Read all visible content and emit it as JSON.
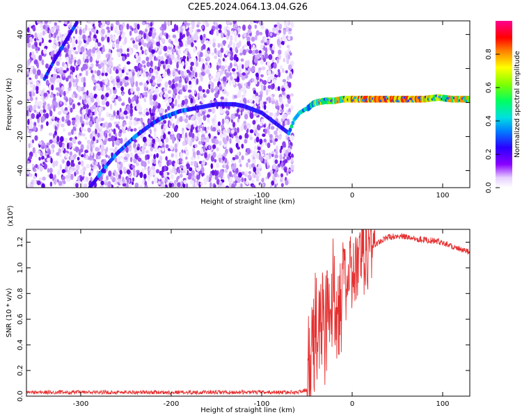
{
  "title": "C2E5.2024.064.13.04.G26",
  "colors": {
    "snr_line": "#e53030",
    "frame": "#000000"
  },
  "chart_data": [
    {
      "type": "heatmap",
      "xlabel": "Height of straight line (km)",
      "ylabel": "Frequency (Hz)",
      "xlim": [
        -360,
        130
      ],
      "ylim": [
        -50,
        48
      ],
      "x_ticks": [
        -300,
        -200,
        -100,
        0,
        100
      ],
      "y_ticks": [
        -40,
        -20,
        0,
        20,
        40
      ],
      "colorbar": {
        "label": "Normalized spectral amplitude",
        "range": [
          0,
          1
        ],
        "ticks": [
          "0.0",
          "0.2",
          "0.4",
          "0.6",
          "0.8"
        ],
        "colormap": "rainbow (white-violet-blue-cyan-green-yellow-red-magenta)"
      },
      "noise_region_x": [
        -360,
        -66
      ],
      "tracks": [
        {
          "name": "steep",
          "points": [
            [
              -340,
              14
            ],
            [
              -330,
              24
            ],
            [
              -320,
              33
            ],
            [
              -310,
              42
            ],
            [
              -303,
              48
            ]
          ]
        },
        {
          "name": "main",
          "points": [
            [
              -290,
              -50
            ],
            [
              -280,
              -43
            ],
            [
              -270,
              -36
            ],
            [
              -260,
              -30
            ],
            [
              -250,
              -25
            ],
            [
              -240,
              -20
            ],
            [
              -230,
              -16
            ],
            [
              -220,
              -12
            ],
            [
              -210,
              -9
            ],
            [
              -200,
              -7
            ],
            [
              -190,
              -5
            ],
            [
              -180,
              -4
            ],
            [
              -170,
              -3
            ],
            [
              -160,
              -2
            ],
            [
              -150,
              -1
            ],
            [
              -140,
              -1
            ],
            [
              -130,
              -1
            ],
            [
              -120,
              -2
            ],
            [
              -110,
              -4
            ],
            [
              -100,
              -6
            ],
            [
              -90,
              -10
            ],
            [
              -80,
              -14
            ],
            [
              -70,
              -18
            ],
            [
              -64,
              -10
            ],
            [
              -58,
              -6
            ],
            [
              -52,
              -4
            ],
            [
              -48,
              -3
            ],
            [
              -44,
              -1
            ],
            [
              -40,
              0
            ],
            [
              -30,
              1
            ],
            [
              -20,
              1
            ],
            [
              -10,
              2
            ],
            [
              0,
              2
            ],
            [
              20,
              2
            ],
            [
              40,
              2
            ],
            [
              60,
              2
            ],
            [
              80,
              2
            ],
            [
              95,
              3
            ],
            [
              110,
              2
            ],
            [
              130,
              2
            ]
          ]
        }
      ]
    },
    {
      "type": "line",
      "xlabel": "Height of straight line (km)",
      "ylabel": "SNR (10 * v/v)",
      "ylabel_scale": "(x10⁴)",
      "xlim": [
        -360,
        130
      ],
      "ylim": [
        0,
        1.3
      ],
      "x_ticks": [
        -300,
        -200,
        -100,
        0,
        100
      ],
      "y_ticks": [
        "0.0",
        "0.2",
        "0.4",
        "0.6",
        "0.8",
        "1.0",
        "1.2"
      ],
      "series": [
        {
          "points": [
            [
              -360,
              0.03
            ],
            [
              -300,
              0.03
            ],
            [
              -200,
              0.03
            ],
            [
              -100,
              0.03
            ],
            [
              -60,
              0.03
            ],
            [
              -50,
              0.05
            ],
            [
              -45,
              0.3
            ],
            [
              -40,
              0.5
            ],
            [
              -35,
              0.6
            ],
            [
              -30,
              0.55
            ],
            [
              -25,
              0.7
            ],
            [
              -20,
              0.75
            ],
            [
              -15,
              0.8
            ],
            [
              -10,
              0.85
            ],
            [
              -5,
              0.9
            ],
            [
              0,
              0.95
            ],
            [
              5,
              1.0
            ],
            [
              10,
              1.05
            ],
            [
              15,
              1.1
            ],
            [
              20,
              1.15
            ],
            [
              25,
              1.18
            ],
            [
              30,
              1.2
            ],
            [
              40,
              1.24
            ],
            [
              50,
              1.25
            ],
            [
              60,
              1.24
            ],
            [
              70,
              1.23
            ],
            [
              80,
              1.22
            ],
            [
              90,
              1.21
            ],
            [
              100,
              1.2
            ],
            [
              110,
              1.17
            ],
            [
              120,
              1.14
            ],
            [
              130,
              1.12
            ]
          ]
        }
      ]
    }
  ]
}
